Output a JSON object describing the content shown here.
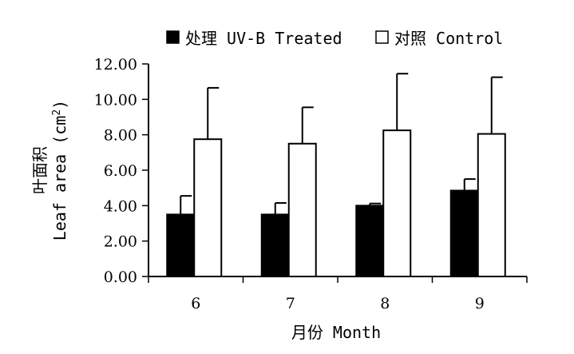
{
  "chart_data": {
    "type": "bar",
    "categories": [
      "6",
      "7",
      "8",
      "9"
    ],
    "series": [
      {
        "name": "处理 UV-B Treated",
        "color": "#000000",
        "values": [
          3.5,
          3.5,
          4.0,
          4.85
        ],
        "error": [
          1.05,
          0.65,
          0.12,
          0.65
        ]
      },
      {
        "name": "对照 Control",
        "color": "#ffffff",
        "values": [
          7.75,
          7.5,
          8.25,
          8.05
        ],
        "error": [
          2.9,
          2.05,
          3.2,
          3.2
        ]
      }
    ],
    "xlabel": "月份 Month",
    "ylabel_line1": "叶面积",
    "ylabel_line2": "Leaf area (cm",
    "ylabel_sup": "2",
    "ylabel_close": ")",
    "ylim": [
      0,
      12
    ],
    "yticks": [
      "0.00",
      "2.00",
      "4.00",
      "6.00",
      "8.00",
      "10.00",
      "12.00"
    ],
    "grid": false,
    "legend_position": "top"
  }
}
